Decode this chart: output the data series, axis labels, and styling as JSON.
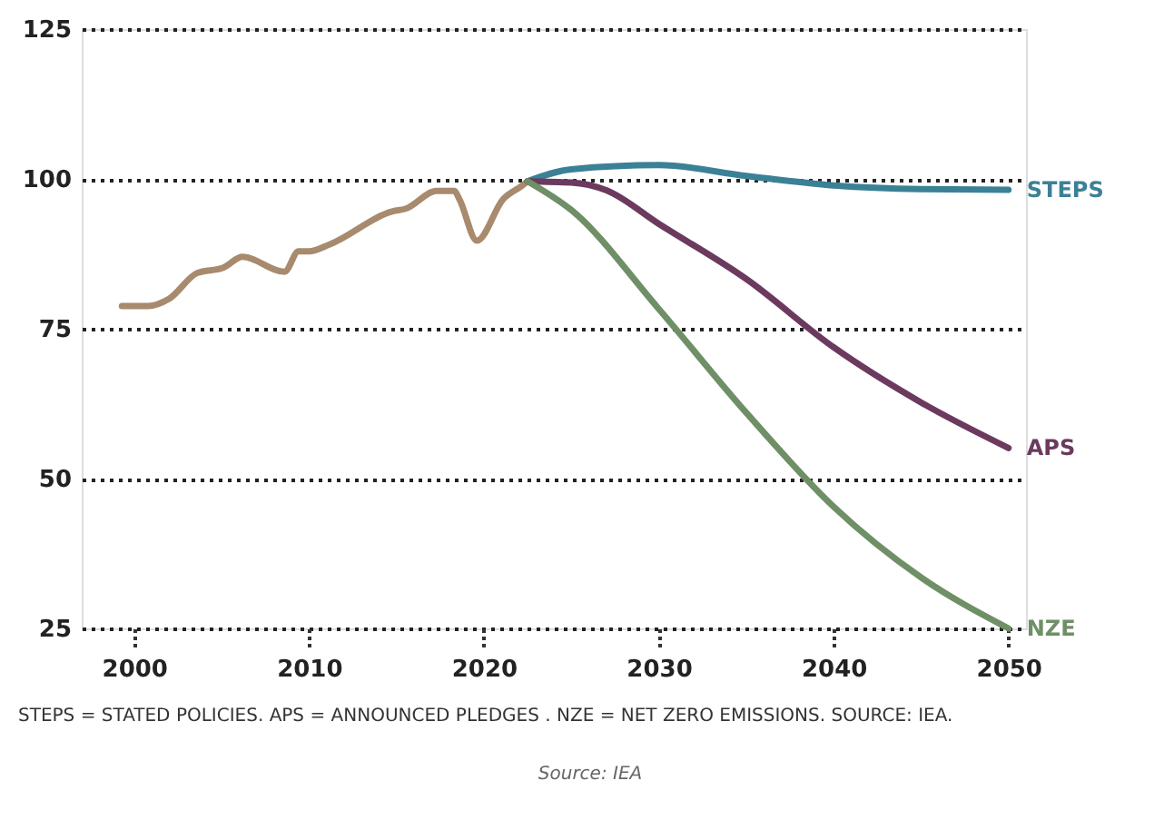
{
  "chart_data": {
    "type": "line",
    "xlim": [
      1997,
      2051
    ],
    "xticks": [
      2000,
      2010,
      2020,
      2030,
      2040,
      2050
    ],
    "ylim": [
      25,
      125
    ],
    "yticks": [
      25,
      50,
      75,
      100,
      125
    ],
    "grid": "y",
    "legend": false,
    "line_style": "solid",
    "series": [
      {
        "color": "#a88a6e",
        "x": [
          1999.3,
          2000.8,
          2002,
          2003.6,
          2005.1,
          2006.2,
          2008.6,
          2009.4,
          2010,
          2011.2,
          2014.8,
          2015.5,
          2017.3,
          2018.3,
          2018.6,
          2019.6,
          2021.1,
          2022.2,
          2022.5
        ],
        "values": [
          78.8,
          78.8,
          80,
          84.3,
          85.2,
          87,
          84.5,
          87.9,
          87.9,
          89.1,
          94.6,
          95,
          98,
          98,
          96.6,
          89.7,
          96.6,
          98.9,
          99.6
        ]
      },
      {
        "name": "STEPS",
        "color": "#3b8196",
        "x": [
          2022.5,
          2025,
          2030,
          2035,
          2040,
          2045,
          2050
        ],
        "values": [
          99.6,
          101.6,
          102.3,
          100.5,
          98.9,
          98.3,
          98.2
        ]
      },
      {
        "name": "APS",
        "color": "#6b3a5e",
        "x": [
          2022.5,
          2025,
          2027,
          2030,
          2035,
          2040,
          2045,
          2050
        ],
        "values": [
          99.6,
          99.4,
          98.1,
          92.5,
          83.3,
          71.9,
          62.7,
          55.1
        ]
      },
      {
        "name": "NZE",
        "color": "#6f8f67",
        "x": [
          2022.5,
          2025,
          2030,
          2035,
          2040,
          2045,
          2050
        ],
        "values": [
          99.6,
          94.8,
          78.3,
          61,
          45.3,
          33.5,
          25
        ]
      }
    ],
    "annotations": [
      "STEPS = STATED POLICIES. APS = ANNOUNCED PLEDGES . NZE = NET ZERO EMISSIONS. SOURCE: IEA.",
      "Source: IEA"
    ]
  }
}
